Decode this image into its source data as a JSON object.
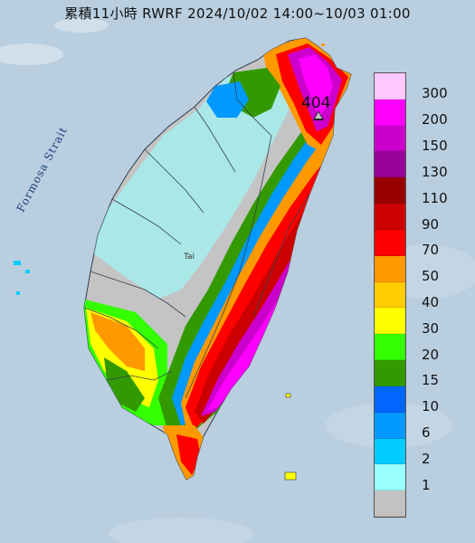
{
  "title": "累積11小時 RWRF 2024/10/02 14:00~10/03 01:00",
  "map": {
    "sea_label": "Formosa Strait",
    "place_label": "Tai",
    "max_value_label": "404"
  },
  "legend": {
    "levels": [
      {
        "label": "300",
        "color": "#ffc8ff"
      },
      {
        "label": "200",
        "color": "#ff00ff"
      },
      {
        "label": "150",
        "color": "#cc00cc"
      },
      {
        "label": "130",
        "color": "#990099"
      },
      {
        "label": "110",
        "color": "#990000"
      },
      {
        "label": "90",
        "color": "#cc0000"
      },
      {
        "label": "70",
        "color": "#ff0000"
      },
      {
        "label": "50",
        "color": "#ff9900"
      },
      {
        "label": "40",
        "color": "#ffcc00"
      },
      {
        "label": "30",
        "color": "#ffff00"
      },
      {
        "label": "20",
        "color": "#33ff00"
      },
      {
        "label": "15",
        "color": "#339900"
      },
      {
        "label": "10",
        "color": "#0066ff"
      },
      {
        "label": "6",
        "color": "#0099ff"
      },
      {
        "label": "2",
        "color": "#00ccff"
      },
      {
        "label": "1",
        "color": "#99ffff"
      },
      {
        "label": "",
        "color": "#c2c2c2"
      }
    ]
  },
  "colors": {
    "sea": "#b9cfe0",
    "island_dry": "#c4c4c4"
  }
}
